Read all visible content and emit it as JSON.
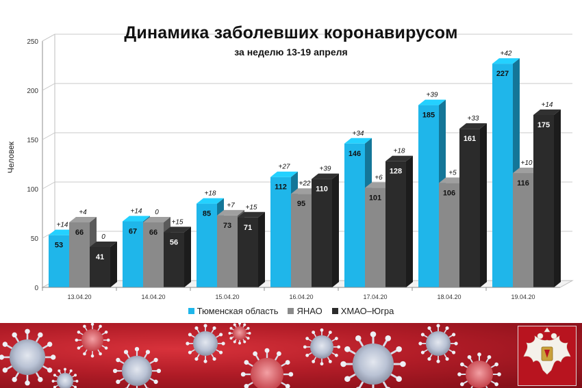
{
  "title": "Динамика заболевших коронавирусом",
  "subtitle": "за неделю 13-19 апреля",
  "chart_data": {
    "type": "bar",
    "title": "Динамика заболевших коронавирусом",
    "subtitle": "за неделю 13-19 апреля",
    "xlabel": "",
    "ylabel": "Человек",
    "ylim": [
      0,
      250
    ],
    "yticks": [
      0,
      50,
      100,
      150,
      200,
      250
    ],
    "grid": true,
    "legend_position": "bottom",
    "categories": [
      "13.04.20",
      "14.04.20",
      "15.04.20",
      "16.04.20",
      "17.04.20",
      "18.04.20",
      "19.04.20"
    ],
    "series": [
      {
        "name": "Тюменская область",
        "color": "#1fb6ea",
        "values": [
          53,
          67,
          85,
          112,
          146,
          185,
          227
        ],
        "increments": [
          "+14",
          "+14",
          "+18",
          "+27",
          "+34",
          "+39",
          "+42"
        ]
      },
      {
        "name": "ЯНАО",
        "color": "#8a8a8a",
        "values": [
          66,
          66,
          73,
          95,
          101,
          106,
          116
        ],
        "increments": [
          "+4",
          "0",
          "+7",
          "+22",
          "+6",
          "+5",
          "+10"
        ]
      },
      {
        "name": "ХМАО–Югра",
        "color": "#2b2b2b",
        "values": [
          41,
          56,
          71,
          110,
          128,
          161,
          175
        ],
        "increments": [
          "0",
          "+15",
          "+15",
          "+39",
          "+18",
          "+33",
          "+14"
        ]
      }
    ]
  },
  "banner": {
    "description_icon": "virus-illustration",
    "emblem_icon": "double-headed-eagle-emblem",
    "colors": {
      "background": "#b11c27",
      "emblem_bg": "#b8141f"
    }
  }
}
